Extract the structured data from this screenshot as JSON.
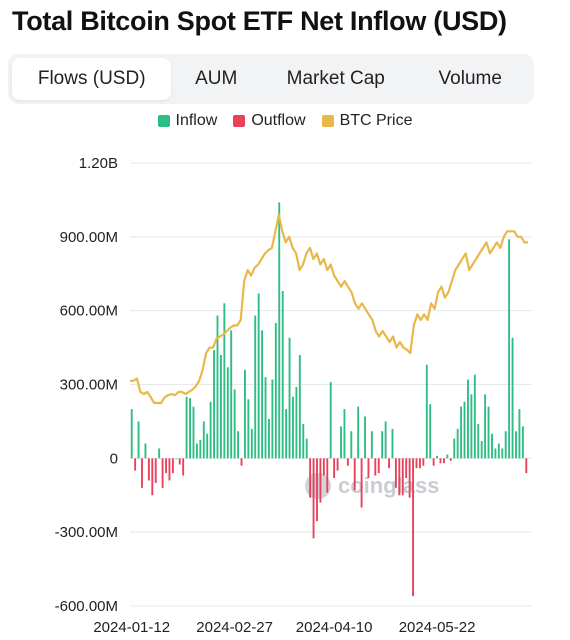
{
  "title": "Total Bitcoin Spot ETF Net Inflow (USD)",
  "tabs": [
    {
      "label": "Flows (USD)",
      "active": true
    },
    {
      "label": "AUM",
      "active": false
    },
    {
      "label": "Market Cap",
      "active": false
    },
    {
      "label": "Volume",
      "active": false
    }
  ],
  "watermark": "coinglass",
  "colors": {
    "inflow": "#2ebd85",
    "outflow": "#e8425a",
    "btc": "#e8b84a",
    "grid": "#e6e8ec"
  },
  "chart_data": {
    "type": "bar",
    "legend": [
      "Inflow",
      "Outflow",
      "BTC Price"
    ],
    "legend_position": "top",
    "grid": true,
    "ylim": [
      -600000000,
      1200000000
    ],
    "y_tick_labels": [
      "1.20B",
      "900.00M",
      "600.00M",
      "300.00M",
      "0",
      "-300.00M",
      "-600.00M"
    ],
    "y_tick_values": [
      1200000000,
      900000000,
      600000000,
      300000000,
      0,
      -300000000,
      -600000000
    ],
    "x_tick_labels": [
      "2024-01-12",
      "2024-02-27",
      "2024-04-10",
      "2024-05-22"
    ],
    "x_tick_positions": [
      0,
      30,
      59,
      89
    ],
    "series": [
      {
        "name": "Flows",
        "values": [
          200000000,
          -50000000,
          150000000,
          -120000000,
          60000000,
          -90000000,
          -150000000,
          -100000000,
          40000000,
          -120000000,
          -60000000,
          -90000000,
          -60000000,
          0,
          -25000000,
          -70000000,
          250000000,
          245000000,
          210000000,
          60000000,
          75000000,
          150000000,
          100000000,
          230000000,
          440000000,
          580000000,
          420000000,
          630000000,
          370000000,
          520000000,
          280000000,
          110000000,
          -30000000,
          360000000,
          240000000,
          120000000,
          580000000,
          670000000,
          520000000,
          330000000,
          160000000,
          320000000,
          550000000,
          1040000000,
          680000000,
          200000000,
          490000000,
          250000000,
          290000000,
          420000000,
          140000000,
          80000000,
          -160000000,
          -325000000,
          -255000000,
          -180000000,
          -70000000,
          -140000000,
          310000000,
          -80000000,
          -50000000,
          130000000,
          200000000,
          -30000000,
          110000000,
          -130000000,
          210000000,
          -200000000,
          170000000,
          -80000000,
          110000000,
          -70000000,
          -60000000,
          110000000,
          150000000,
          -40000000,
          120000000,
          -120000000,
          -150000000,
          -150000000,
          -80000000,
          -160000000,
          -560000000,
          -40000000,
          -40000000,
          -30000000,
          380000000,
          220000000,
          -30000000,
          10000000,
          -20000000,
          -20000000,
          15000000,
          -10000000,
          80000000,
          120000000,
          210000000,
          230000000,
          320000000,
          260000000,
          340000000,
          140000000,
          70000000,
          260000000,
          210000000,
          100000000,
          40000000,
          60000000,
          40000000,
          110000000,
          890000000,
          490000000,
          110000000,
          200000000,
          130000000,
          -60000000
        ]
      },
      {
        "name": "BTC Price",
        "values": [
          0.7,
          0.7,
          0.72,
          0.6,
          0.58,
          0.6,
          0.55,
          0.5,
          0.5,
          0.5,
          0.55,
          0.57,
          0.58,
          0.57,
          0.6,
          0.6,
          0.58,
          0.6,
          0.62,
          0.65,
          0.7,
          0.8,
          0.95,
          1.0,
          1.0,
          1.08,
          1.1,
          1.12,
          1.15,
          1.18,
          1.2,
          1.2,
          1.25,
          1.6,
          1.7,
          1.65,
          1.72,
          1.75,
          1.8,
          1.85,
          1.88,
          1.9,
          2.05,
          2.2,
          2.05,
          1.95,
          2.0,
          1.9,
          1.85,
          1.7,
          1.75,
          1.85,
          1.9,
          1.8,
          1.85,
          1.75,
          1.8,
          1.7,
          1.75,
          1.65,
          1.6,
          1.55,
          1.6,
          1.55,
          1.5,
          1.4,
          1.35,
          1.4,
          1.35,
          1.3,
          1.25,
          1.15,
          1.1,
          1.15,
          1.1,
          1.05,
          1.1,
          1.0,
          1.05,
          1.0,
          0.98,
          0.95,
          1.2,
          1.3,
          1.25,
          1.3,
          1.25,
          1.4,
          1.35,
          1.5,
          1.55,
          1.45,
          1.5,
          1.6,
          1.7,
          1.75,
          1.8,
          1.85,
          1.7,
          1.75,
          1.8,
          1.85,
          1.9,
          1.95,
          1.85,
          1.9,
          1.95,
          1.9,
          2.0,
          2.05,
          2.05,
          2.05,
          2.0,
          2.0,
          1.95,
          1.95
        ]
      }
    ]
  }
}
